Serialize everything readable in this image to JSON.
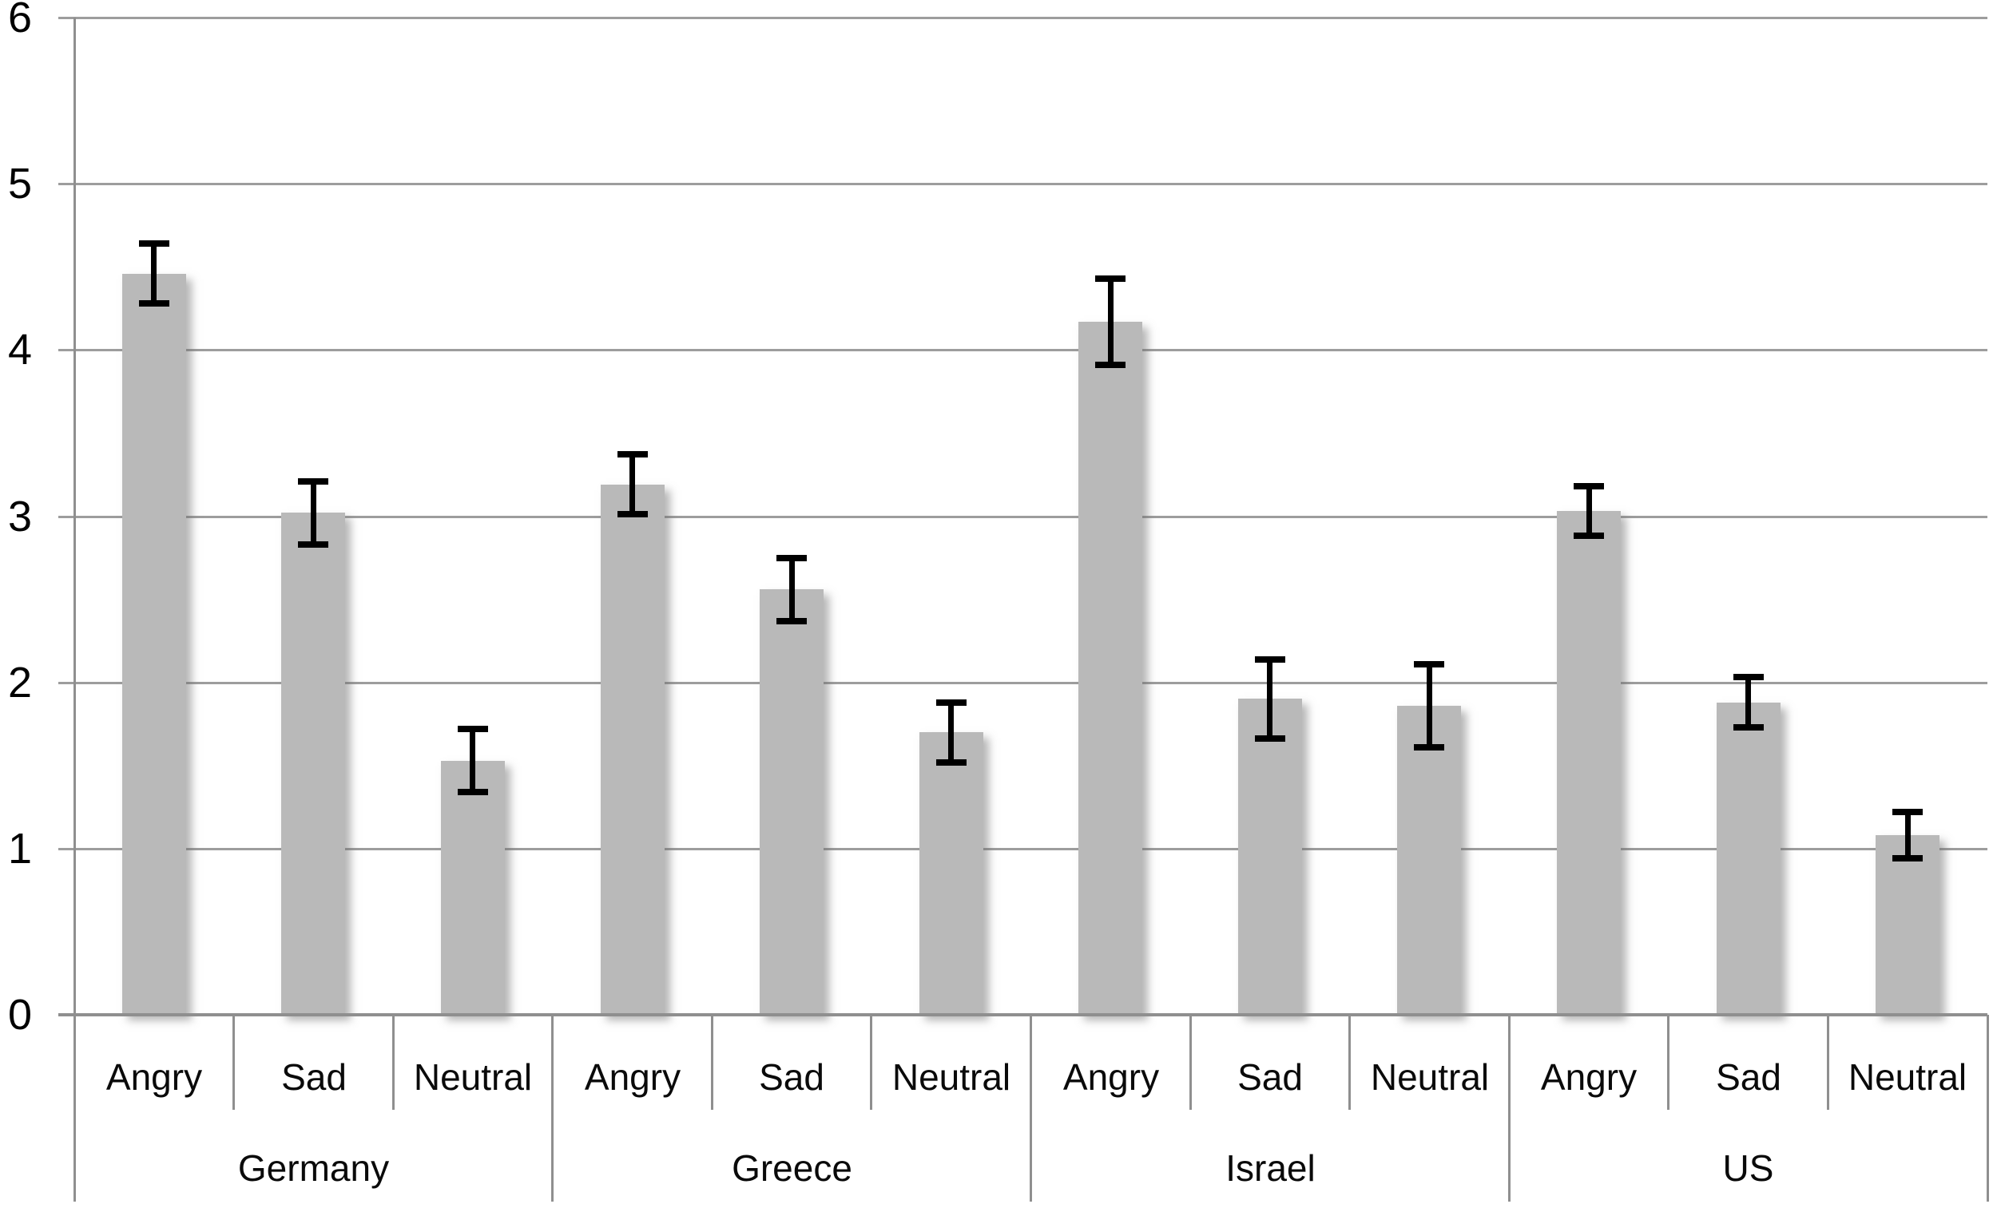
{
  "chart_data": {
    "type": "bar",
    "title": "",
    "xlabel": "",
    "ylabel": "",
    "legend": false,
    "grid": true,
    "background": "#ffffff",
    "y_axis": {
      "min": 0,
      "max": 6,
      "ticks": [
        0,
        1,
        2,
        3,
        4,
        5,
        6
      ]
    },
    "groups": [
      "Germany",
      "Greece",
      "Israel",
      "US"
    ],
    "categories": [
      "Angry",
      "Sad",
      "Neutral"
    ],
    "points": [
      {
        "group": "Germany",
        "category": "Angry",
        "value": 4.46,
        "error": 0.18
      },
      {
        "group": "Germany",
        "category": "Sad",
        "value": 3.02,
        "error": 0.19
      },
      {
        "group": "Germany",
        "category": "Neutral",
        "value": 1.53,
        "error": 0.19
      },
      {
        "group": "Greece",
        "category": "Angry",
        "value": 3.19,
        "error": 0.18
      },
      {
        "group": "Greece",
        "category": "Sad",
        "value": 2.56,
        "error": 0.19
      },
      {
        "group": "Greece",
        "category": "Neutral",
        "value": 1.7,
        "error": 0.18
      },
      {
        "group": "Israel",
        "category": "Angry",
        "value": 4.17,
        "error": 0.26
      },
      {
        "group": "Israel",
        "category": "Sad",
        "value": 1.9,
        "error": 0.24
      },
      {
        "group": "Israel",
        "category": "Neutral",
        "value": 1.86,
        "error": 0.25
      },
      {
        "group": "US",
        "category": "Angry",
        "value": 3.03,
        "error": 0.15
      },
      {
        "group": "US",
        "category": "Sad",
        "value": 1.88,
        "error": 0.15
      },
      {
        "group": "US",
        "category": "Neutral",
        "value": 1.08,
        "error": 0.14
      }
    ],
    "colors": {
      "bar": "#b9b9b9",
      "gridline": "#9d9d9d",
      "axis": "#8f8f8f",
      "error_bar": "#000000",
      "text": "#0a0a0a"
    }
  }
}
